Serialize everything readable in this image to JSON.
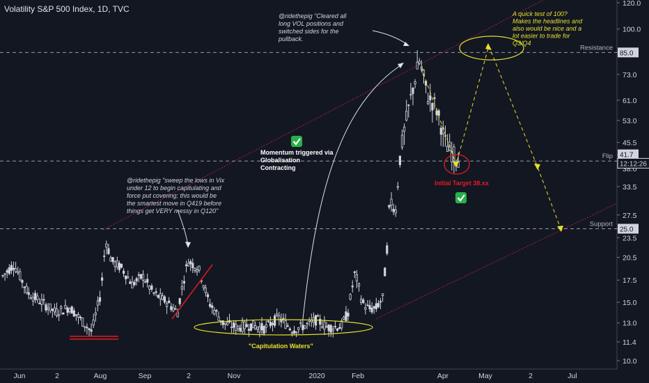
{
  "header": {
    "title": "Volatility S&P 500 Index, 1D, TVC"
  },
  "chart_data": {
    "type": "candlestick",
    "y_scale": "log",
    "y_ticks": [
      "120.0",
      "100.0",
      "85.0",
      "73.0",
      "61.0",
      "53.0",
      "45.5",
      "41.7",
      "38.0",
      "33.5",
      "27.5",
      "25.0",
      "23.5",
      "20.5",
      "17.5",
      "15.0",
      "13.0",
      "11.4",
      "10.0"
    ],
    "price_labels": [
      {
        "text": "85.0",
        "kind": "level"
      },
      {
        "text": "41.7",
        "kind": "last"
      },
      {
        "text": "12:12:26",
        "kind": "timer"
      },
      {
        "text": "25.0",
        "kind": "level"
      }
    ],
    "x_ticks": [
      "Jun",
      "2",
      "Aug",
      "Sep",
      "2",
      "Nov",
      "2020",
      "Feb",
      "Apr",
      "May",
      "2",
      "Jul"
    ],
    "levels": [
      {
        "label": "Resistance",
        "value": 85.0
      },
      {
        "label": "Flip",
        "value": 40.0
      },
      {
        "label": "Support",
        "value": 25.0
      }
    ],
    "annotations": [
      {
        "id": "tweet-top",
        "text": "@ridethepig \"Cleared all long VOL positions and switched sides for the pullback."
      },
      {
        "id": "tweet-left",
        "text": "@ridethepig \"sweep the lows in Vix under 12 to begin capitulating and force put covering; this would be the smartest move in Q419 before things get VERY messy in Q120\""
      },
      {
        "id": "momentum",
        "text": "Momentum triggered via Globalisation Contracting"
      },
      {
        "id": "quick-test",
        "text": "A quick test of 100? Makes the headlines and also would be nice and a lot easier to trade for Q3/Q4"
      },
      {
        "id": "initial-target",
        "text": "Initial Target 38.xx"
      },
      {
        "id": "capitulation",
        "text": "\"Capitulation Waters\""
      }
    ],
    "colors": {
      "background": "#131722",
      "axis_text": "#d1d4dc",
      "candle": "#d1d4dc",
      "dashed": "#c5c8cf",
      "red": "#e31b23",
      "yellow": "#e6e02a",
      "channel": "#b01e4a",
      "check_bg": "#27b049"
    }
  }
}
